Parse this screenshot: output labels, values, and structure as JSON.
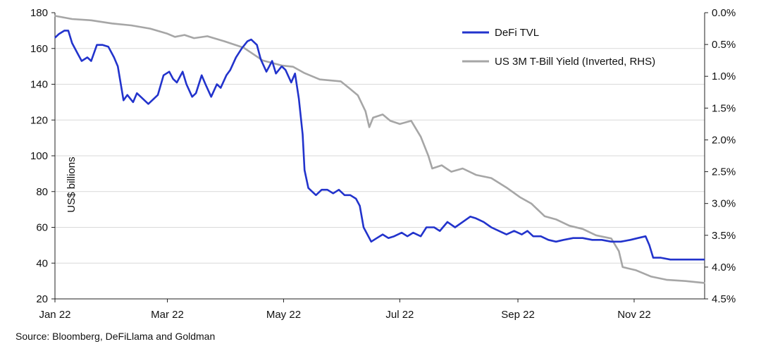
{
  "chart_data": {
    "type": "line",
    "title": "",
    "xlabel": "",
    "ylabel": "US$ billions",
    "ylim": [
      20,
      180
    ],
    "y2lim": [
      0.0,
      4.5
    ],
    "y2_inverted": true,
    "y_ticks": [
      20,
      40,
      60,
      80,
      100,
      120,
      140,
      160,
      180
    ],
    "y_tick_labels": [
      "20",
      "40",
      "60",
      "80",
      "100",
      "120",
      "140",
      "160",
      "180"
    ],
    "y2_ticks": [
      0.0,
      0.5,
      1.0,
      1.5,
      2.0,
      2.5,
      3.0,
      3.5,
      4.0,
      4.5
    ],
    "y2_tick_labels": [
      "0.0%",
      "0.5%",
      "1.0%",
      "1.5%",
      "2.0%",
      "2.5%",
      "3.0%",
      "3.5%",
      "4.0%",
      "4.5%"
    ],
    "x_ticks": [
      "2022-01-01",
      "2022-03-01",
      "2022-05-01",
      "2022-07-01",
      "2022-09-01",
      "2022-11-01"
    ],
    "x_tick_labels": [
      "Jan 22",
      "Mar 22",
      "May 22",
      "Jul 22",
      "Sep 22",
      "Nov 22"
    ],
    "x_end": "2022-12-08",
    "grid": "horizontal",
    "legend_position": "top-right",
    "source_note": "Source: Bloomberg, DeFiLlama and Goldman",
    "colors": {
      "defi_tvl": "#2233cc",
      "tbill": "#a6a6a6",
      "grid": "#d9d9d9",
      "axis": "#222222"
    },
    "series": [
      {
        "name": "DeFi TVL",
        "axis": "left",
        "color": "#2233cc",
        "points": [
          [
            "2022-01-01",
            166
          ],
          [
            "2022-01-03",
            168
          ],
          [
            "2022-01-06",
            170
          ],
          [
            "2022-01-08",
            170
          ],
          [
            "2022-01-10",
            163
          ],
          [
            "2022-01-13",
            157
          ],
          [
            "2022-01-15",
            153
          ],
          [
            "2022-01-18",
            155
          ],
          [
            "2022-01-20",
            153
          ],
          [
            "2022-01-23",
            162
          ],
          [
            "2022-01-26",
            162
          ],
          [
            "2022-01-29",
            161
          ],
          [
            "2022-02-01",
            155
          ],
          [
            "2022-02-03",
            150
          ],
          [
            "2022-02-06",
            131
          ],
          [
            "2022-02-08",
            134
          ],
          [
            "2022-02-11",
            130
          ],
          [
            "2022-02-13",
            135
          ],
          [
            "2022-02-16",
            132
          ],
          [
            "2022-02-19",
            129
          ],
          [
            "2022-02-22",
            132
          ],
          [
            "2022-02-24",
            134
          ],
          [
            "2022-02-27",
            145
          ],
          [
            "2022-03-02",
            147
          ],
          [
            "2022-03-04",
            143
          ],
          [
            "2022-03-06",
            141
          ],
          [
            "2022-03-09",
            147
          ],
          [
            "2022-03-11",
            140
          ],
          [
            "2022-03-14",
            133
          ],
          [
            "2022-03-16",
            135
          ],
          [
            "2022-03-19",
            145
          ],
          [
            "2022-03-21",
            140
          ],
          [
            "2022-03-24",
            133
          ],
          [
            "2022-03-27",
            140
          ],
          [
            "2022-03-29",
            138
          ],
          [
            "2022-04-01",
            145
          ],
          [
            "2022-04-03",
            148
          ],
          [
            "2022-04-06",
            155
          ],
          [
            "2022-04-09",
            160
          ],
          [
            "2022-04-12",
            164
          ],
          [
            "2022-04-14",
            165
          ],
          [
            "2022-04-17",
            162
          ],
          [
            "2022-04-19",
            154
          ],
          [
            "2022-04-22",
            147
          ],
          [
            "2022-04-25",
            153
          ],
          [
            "2022-04-27",
            146
          ],
          [
            "2022-04-30",
            150
          ],
          [
            "2022-05-02",
            148
          ],
          [
            "2022-05-05",
            141
          ],
          [
            "2022-05-07",
            146
          ],
          [
            "2022-05-09",
            132
          ],
          [
            "2022-05-11",
            112
          ],
          [
            "2022-05-12",
            92
          ],
          [
            "2022-05-14",
            82
          ],
          [
            "2022-05-16",
            80
          ],
          [
            "2022-05-18",
            78
          ],
          [
            "2022-05-21",
            81
          ],
          [
            "2022-05-24",
            81
          ],
          [
            "2022-05-27",
            79
          ],
          [
            "2022-05-30",
            81
          ],
          [
            "2022-06-02",
            78
          ],
          [
            "2022-06-05",
            78
          ],
          [
            "2022-06-08",
            76
          ],
          [
            "2022-06-10",
            72
          ],
          [
            "2022-06-12",
            60
          ],
          [
            "2022-06-14",
            56
          ],
          [
            "2022-06-16",
            52
          ],
          [
            "2022-06-19",
            54
          ],
          [
            "2022-06-22",
            56
          ],
          [
            "2022-06-25",
            54
          ],
          [
            "2022-06-28",
            55
          ],
          [
            "2022-07-02",
            57
          ],
          [
            "2022-07-05",
            55
          ],
          [
            "2022-07-08",
            57
          ],
          [
            "2022-07-12",
            55
          ],
          [
            "2022-07-15",
            60
          ],
          [
            "2022-07-19",
            60
          ],
          [
            "2022-07-22",
            58
          ],
          [
            "2022-07-26",
            63
          ],
          [
            "2022-07-30",
            60
          ],
          [
            "2022-08-03",
            63
          ],
          [
            "2022-08-07",
            66
          ],
          [
            "2022-08-10",
            65
          ],
          [
            "2022-08-14",
            63
          ],
          [
            "2022-08-18",
            60
          ],
          [
            "2022-08-22",
            58
          ],
          [
            "2022-08-26",
            56
          ],
          [
            "2022-08-30",
            58
          ],
          [
            "2022-09-03",
            56
          ],
          [
            "2022-09-06",
            58
          ],
          [
            "2022-09-09",
            55
          ],
          [
            "2022-09-13",
            55
          ],
          [
            "2022-09-17",
            53
          ],
          [
            "2022-09-21",
            52
          ],
          [
            "2022-09-25",
            53
          ],
          [
            "2022-09-30",
            54
          ],
          [
            "2022-10-05",
            54
          ],
          [
            "2022-10-10",
            53
          ],
          [
            "2022-10-15",
            53
          ],
          [
            "2022-10-20",
            52
          ],
          [
            "2022-10-25",
            52
          ],
          [
            "2022-10-30",
            53
          ],
          [
            "2022-11-03",
            54
          ],
          [
            "2022-11-07",
            55
          ],
          [
            "2022-11-09",
            50
          ],
          [
            "2022-11-11",
            43
          ],
          [
            "2022-11-15",
            43
          ],
          [
            "2022-11-20",
            42
          ],
          [
            "2022-11-28",
            42
          ],
          [
            "2022-12-08",
            42
          ]
        ]
      },
      {
        "name": "US 3M T-Bill Yield (Inverted, RHS)",
        "axis": "right",
        "color": "#a6a6a6",
        "points": [
          [
            "2022-01-01",
            0.05
          ],
          [
            "2022-01-10",
            0.1
          ],
          [
            "2022-01-20",
            0.12
          ],
          [
            "2022-01-31",
            0.17
          ],
          [
            "2022-02-10",
            0.2
          ],
          [
            "2022-02-20",
            0.25
          ],
          [
            "2022-03-01",
            0.33
          ],
          [
            "2022-03-05",
            0.38
          ],
          [
            "2022-03-10",
            0.35
          ],
          [
            "2022-03-15",
            0.4
          ],
          [
            "2022-03-22",
            0.37
          ],
          [
            "2022-03-31",
            0.45
          ],
          [
            "2022-04-10",
            0.55
          ],
          [
            "2022-04-20",
            0.75
          ],
          [
            "2022-04-30",
            0.83
          ],
          [
            "2022-05-06",
            0.85
          ],
          [
            "2022-05-12",
            0.95
          ],
          [
            "2022-05-20",
            1.05
          ],
          [
            "2022-05-31",
            1.08
          ],
          [
            "2022-06-05",
            1.2
          ],
          [
            "2022-06-09",
            1.3
          ],
          [
            "2022-06-13",
            1.55
          ],
          [
            "2022-06-15",
            1.8
          ],
          [
            "2022-06-17",
            1.65
          ],
          [
            "2022-06-22",
            1.6
          ],
          [
            "2022-06-26",
            1.7
          ],
          [
            "2022-07-01",
            1.75
          ],
          [
            "2022-07-07",
            1.7
          ],
          [
            "2022-07-12",
            1.95
          ],
          [
            "2022-07-16",
            2.25
          ],
          [
            "2022-07-18",
            2.45
          ],
          [
            "2022-07-23",
            2.4
          ],
          [
            "2022-07-28",
            2.5
          ],
          [
            "2022-08-03",
            2.45
          ],
          [
            "2022-08-10",
            2.55
          ],
          [
            "2022-08-18",
            2.6
          ],
          [
            "2022-08-26",
            2.75
          ],
          [
            "2022-09-02",
            2.9
          ],
          [
            "2022-09-08",
            3.0
          ],
          [
            "2022-09-15",
            3.2
          ],
          [
            "2022-09-21",
            3.25
          ],
          [
            "2022-09-28",
            3.35
          ],
          [
            "2022-10-05",
            3.4
          ],
          [
            "2022-10-12",
            3.5
          ],
          [
            "2022-10-20",
            3.55
          ],
          [
            "2022-10-24",
            3.75
          ],
          [
            "2022-10-26",
            4.0
          ],
          [
            "2022-11-02",
            4.05
          ],
          [
            "2022-11-10",
            4.15
          ],
          [
            "2022-11-18",
            4.2
          ],
          [
            "2022-11-28",
            4.22
          ],
          [
            "2022-12-08",
            4.25
          ]
        ]
      }
    ]
  }
}
